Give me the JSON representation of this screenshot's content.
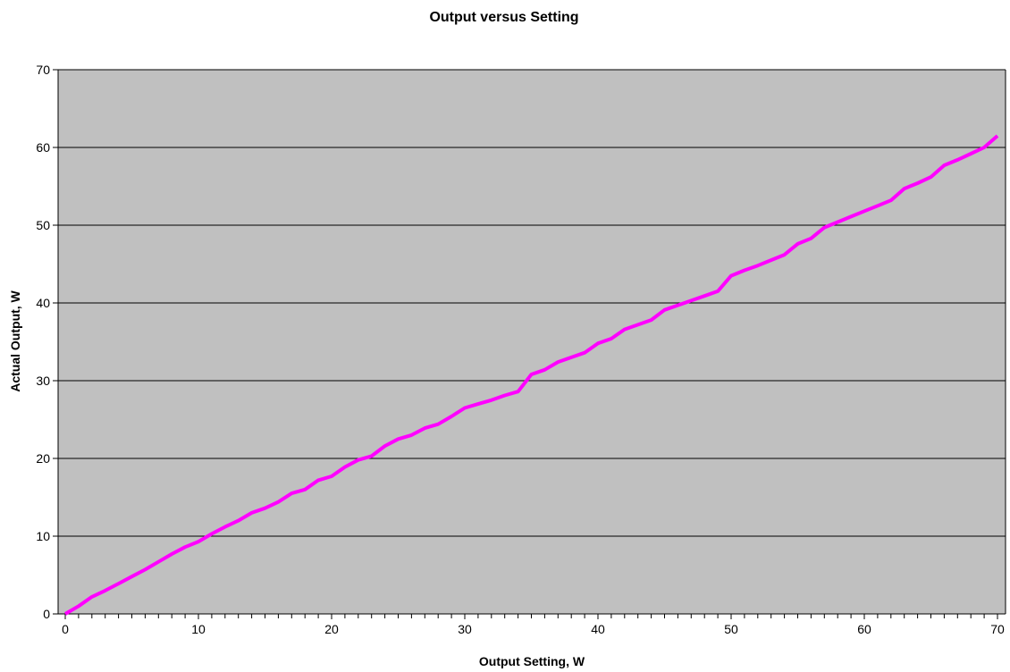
{
  "chart_data": {
    "type": "line",
    "title": "Output versus Setting",
    "xlabel": "Output Setting, W",
    "ylabel": "Actual Output, W",
    "xlim": [
      0,
      70
    ],
    "ylim": [
      0,
      70
    ],
    "x_ticks": [
      0,
      10,
      20,
      30,
      40,
      50,
      60,
      70
    ],
    "y_ticks": [
      0,
      10,
      20,
      30,
      40,
      50,
      60,
      70
    ],
    "x_ticks_minor_step": 1,
    "grid": "horizontal major gridlines",
    "legend": "none",
    "colors": {
      "plot_bg": "#c0c0c0",
      "line": "#ff00ff",
      "grid": "#000000"
    },
    "series": [
      {
        "x": [
          0,
          1,
          2,
          3,
          4,
          5,
          6,
          7,
          8,
          9,
          10,
          11,
          12,
          13,
          14,
          15,
          16,
          17,
          18,
          19,
          20,
          21,
          22,
          23,
          24,
          25,
          26,
          27,
          28,
          29,
          30,
          31,
          32,
          33,
          34,
          35,
          36,
          37,
          38,
          39,
          40,
          41,
          42,
          43,
          44,
          45,
          46,
          47,
          48,
          49,
          50,
          51,
          52,
          53,
          54,
          55,
          56,
          57,
          58,
          59,
          60,
          61,
          62,
          63,
          64,
          65,
          66,
          67,
          68,
          69,
          70
        ],
        "y": [
          0,
          1.0,
          2.2,
          3.0,
          3.9,
          4.8,
          5.7,
          6.7,
          7.7,
          8.6,
          9.3,
          10.3,
          11.2,
          12.0,
          13.0,
          13.6,
          14.4,
          15.5,
          16.0,
          17.2,
          17.7,
          18.9,
          19.8,
          20.3,
          21.6,
          22.5,
          23.0,
          23.9,
          24.4,
          25.4,
          26.5,
          27.0,
          27.5,
          28.1,
          28.6,
          30.8,
          31.4,
          32.4,
          33.0,
          33.6,
          34.8,
          35.4,
          36.6,
          37.2,
          37.8,
          39.1,
          39.7,
          40.3,
          40.9,
          41.5,
          43.5,
          44.2,
          44.8,
          45.5,
          46.2,
          47.6,
          48.3,
          49.7,
          50.4,
          51.1,
          51.8,
          52.5,
          53.2,
          54.7,
          55.4,
          56.2,
          57.7,
          58.4,
          59.2,
          60.0,
          61.5
        ]
      }
    ]
  }
}
